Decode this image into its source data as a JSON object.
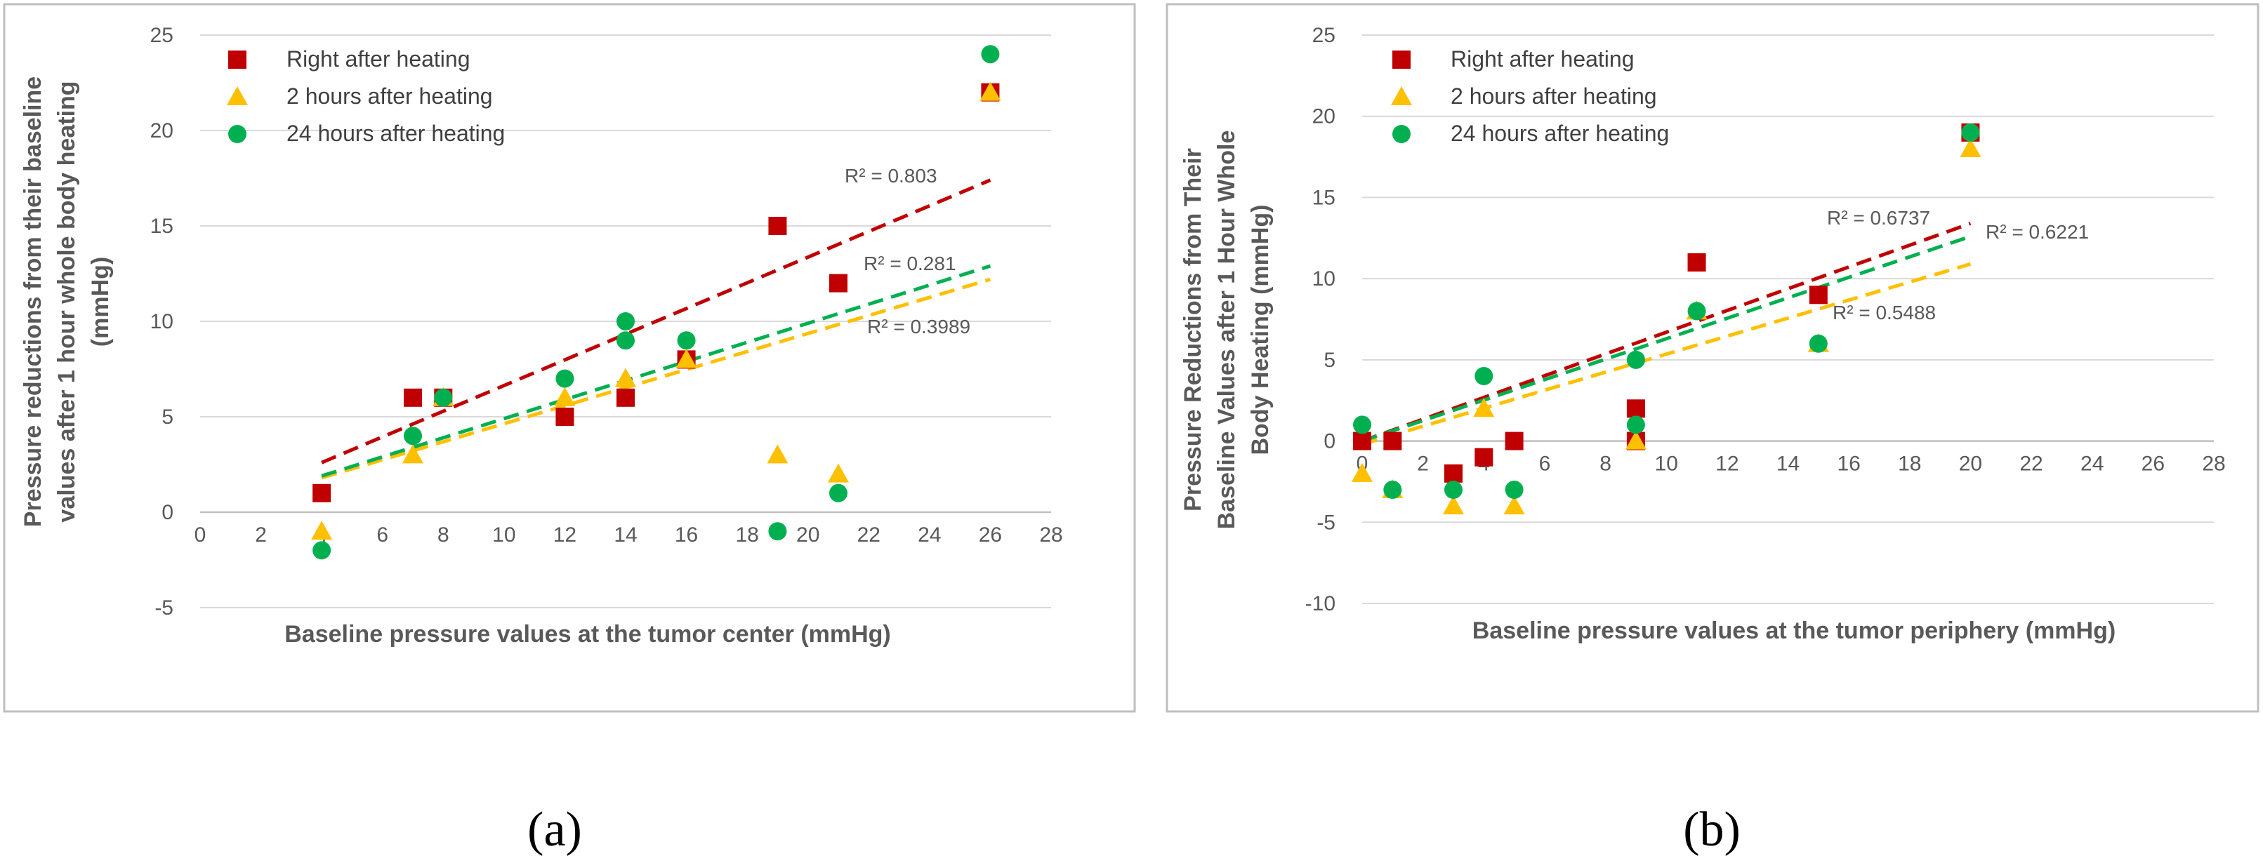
{
  "colors": {
    "right": "#C00000",
    "two_hours": "#FFC000",
    "twentyfour": "#00B050",
    "axis": "#D9D9D9",
    "text": "#595959"
  },
  "chart_data": [
    {
      "type": "scatter",
      "panel_label": "(a)",
      "xlabel": "Baseline pressure values at the tumor center (mmHg)",
      "ylabel_lines": [
        "Pressure reductions from their baseline",
        "values after 1 hour whole body heating",
        "(mmHg)"
      ],
      "xlim": [
        0,
        28
      ],
      "ylim": [
        -5,
        25
      ],
      "x_ticks": [
        "0",
        "2",
        "4",
        "6",
        "8",
        "10",
        "12",
        "14",
        "16",
        "18",
        "20",
        "22",
        "24",
        "26",
        "28"
      ],
      "y_ticks": [
        "-5",
        "0",
        "5",
        "10",
        "15",
        "20",
        "25"
      ],
      "series": [
        {
          "name": "Right after heating",
          "marker": "square",
          "color_key": "right",
          "points": [
            [
              4,
              1
            ],
            [
              7,
              6
            ],
            [
              8,
              6
            ],
            [
              12,
              5
            ],
            [
              14,
              6
            ],
            [
              16,
              8
            ],
            [
              19,
              15
            ],
            [
              21,
              12
            ],
            [
              26,
              22
            ]
          ],
          "trend": {
            "x1": 4,
            "y1": 2.6,
            "x2": 26,
            "y2": 17.4
          },
          "r2": "R² = 0.803"
        },
        {
          "name": "2 hours after heating",
          "marker": "triangle",
          "color_key": "two_hours",
          "points": [
            [
              4,
              -1
            ],
            [
              7,
              3
            ],
            [
              8,
              6
            ],
            [
              12,
              6
            ],
            [
              14,
              7
            ],
            [
              16,
              8
            ],
            [
              19,
              3
            ],
            [
              21,
              2
            ],
            [
              26,
              22
            ]
          ],
          "trend": {
            "x1": 4,
            "y1": 1.8,
            "x2": 26,
            "y2": 12.2
          },
          "r2": "R² = 0.3989"
        },
        {
          "name": "24 hours after heating",
          "marker": "circle",
          "color_key": "twentyfour",
          "points": [
            [
              4,
              -2
            ],
            [
              7,
              4
            ],
            [
              8,
              6
            ],
            [
              12,
              7
            ],
            [
              14,
              10
            ],
            [
              14,
              9
            ],
            [
              16,
              9
            ],
            [
              19,
              -1
            ],
            [
              21,
              1
            ],
            [
              26,
              24
            ]
          ],
          "trend": {
            "x1": 4,
            "y1": 1.9,
            "x2": 26,
            "y2": 12.9
          },
          "r2": "R² = 0.281"
        }
      ]
    },
    {
      "type": "scatter",
      "panel_label": "(b)",
      "xlabel": "Baseline pressure values at the tumor periphery (mmHg)",
      "ylabel_lines": [
        "Pressure Reductions from Their",
        "Baseline Values after 1 Hour Whole",
        "Body Heating (mmHg)"
      ],
      "xlim": [
        0,
        28
      ],
      "ylim": [
        -10,
        25
      ],
      "x_ticks": [
        "0",
        "2",
        "4",
        "6",
        "8",
        "10",
        "12",
        "14",
        "16",
        "18",
        "20",
        "22",
        "24",
        "26",
        "28"
      ],
      "y_ticks": [
        "-10",
        "-5",
        "0",
        "5",
        "10",
        "15",
        "20",
        "25"
      ],
      "series": [
        {
          "name": "Right after heating",
          "marker": "square",
          "color_key": "right",
          "points": [
            [
              0,
              0
            ],
            [
              1,
              0
            ],
            [
              3,
              -2
            ],
            [
              4,
              -1
            ],
            [
              5,
              0
            ],
            [
              9,
              2
            ],
            [
              9,
              0
            ],
            [
              11,
              11
            ],
            [
              15,
              9
            ],
            [
              20,
              19
            ]
          ],
          "trend": {
            "x1": 0,
            "y1": 0,
            "x2": 20,
            "y2": 13.4
          },
          "r2": "R² = 0.6737"
        },
        {
          "name": "2 hours after heating",
          "marker": "triangle",
          "color_key": "two_hours",
          "points": [
            [
              0,
              -2
            ],
            [
              1,
              -3
            ],
            [
              3,
              -4
            ],
            [
              4,
              2
            ],
            [
              5,
              -4
            ],
            [
              9,
              0
            ],
            [
              11,
              8
            ],
            [
              15,
              6
            ],
            [
              20,
              18
            ]
          ],
          "trend": {
            "x1": 0,
            "y1": -0.2,
            "x2": 20,
            "y2": 10.9
          },
          "r2": "R² = 0.5488"
        },
        {
          "name": "24 hours after heating",
          "marker": "circle",
          "color_key": "twentyfour",
          "points": [
            [
              0,
              1
            ],
            [
              1,
              -3
            ],
            [
              3,
              -3
            ],
            [
              4,
              4
            ],
            [
              5,
              -3
            ],
            [
              9,
              5
            ],
            [
              9,
              1
            ],
            [
              11,
              8
            ],
            [
              15,
              6
            ],
            [
              20,
              19
            ]
          ],
          "trend": {
            "x1": 0,
            "y1": 0,
            "x2": 20,
            "y2": 12.6
          },
          "r2": "R² = 0.6221"
        }
      ]
    }
  ]
}
